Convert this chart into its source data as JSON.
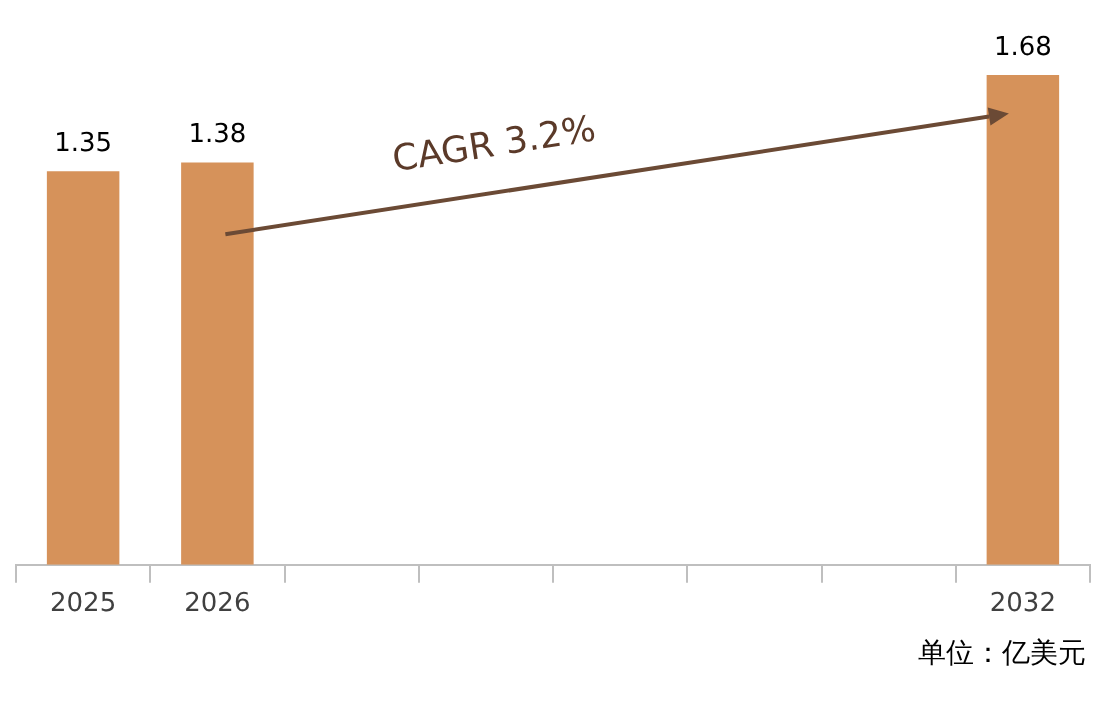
{
  "chart_data": {
    "type": "bar",
    "categories": [
      "2025",
      "2026",
      null,
      null,
      null,
      null,
      null,
      "2032"
    ],
    "values": [
      1.35,
      1.38,
      null,
      null,
      null,
      null,
      null,
      1.68
    ],
    "color": "#d6925a",
    "data_labels": true,
    "annotations": [
      "CAGR 3.2%",
      "单位：亿美元"
    ]
  }
}
